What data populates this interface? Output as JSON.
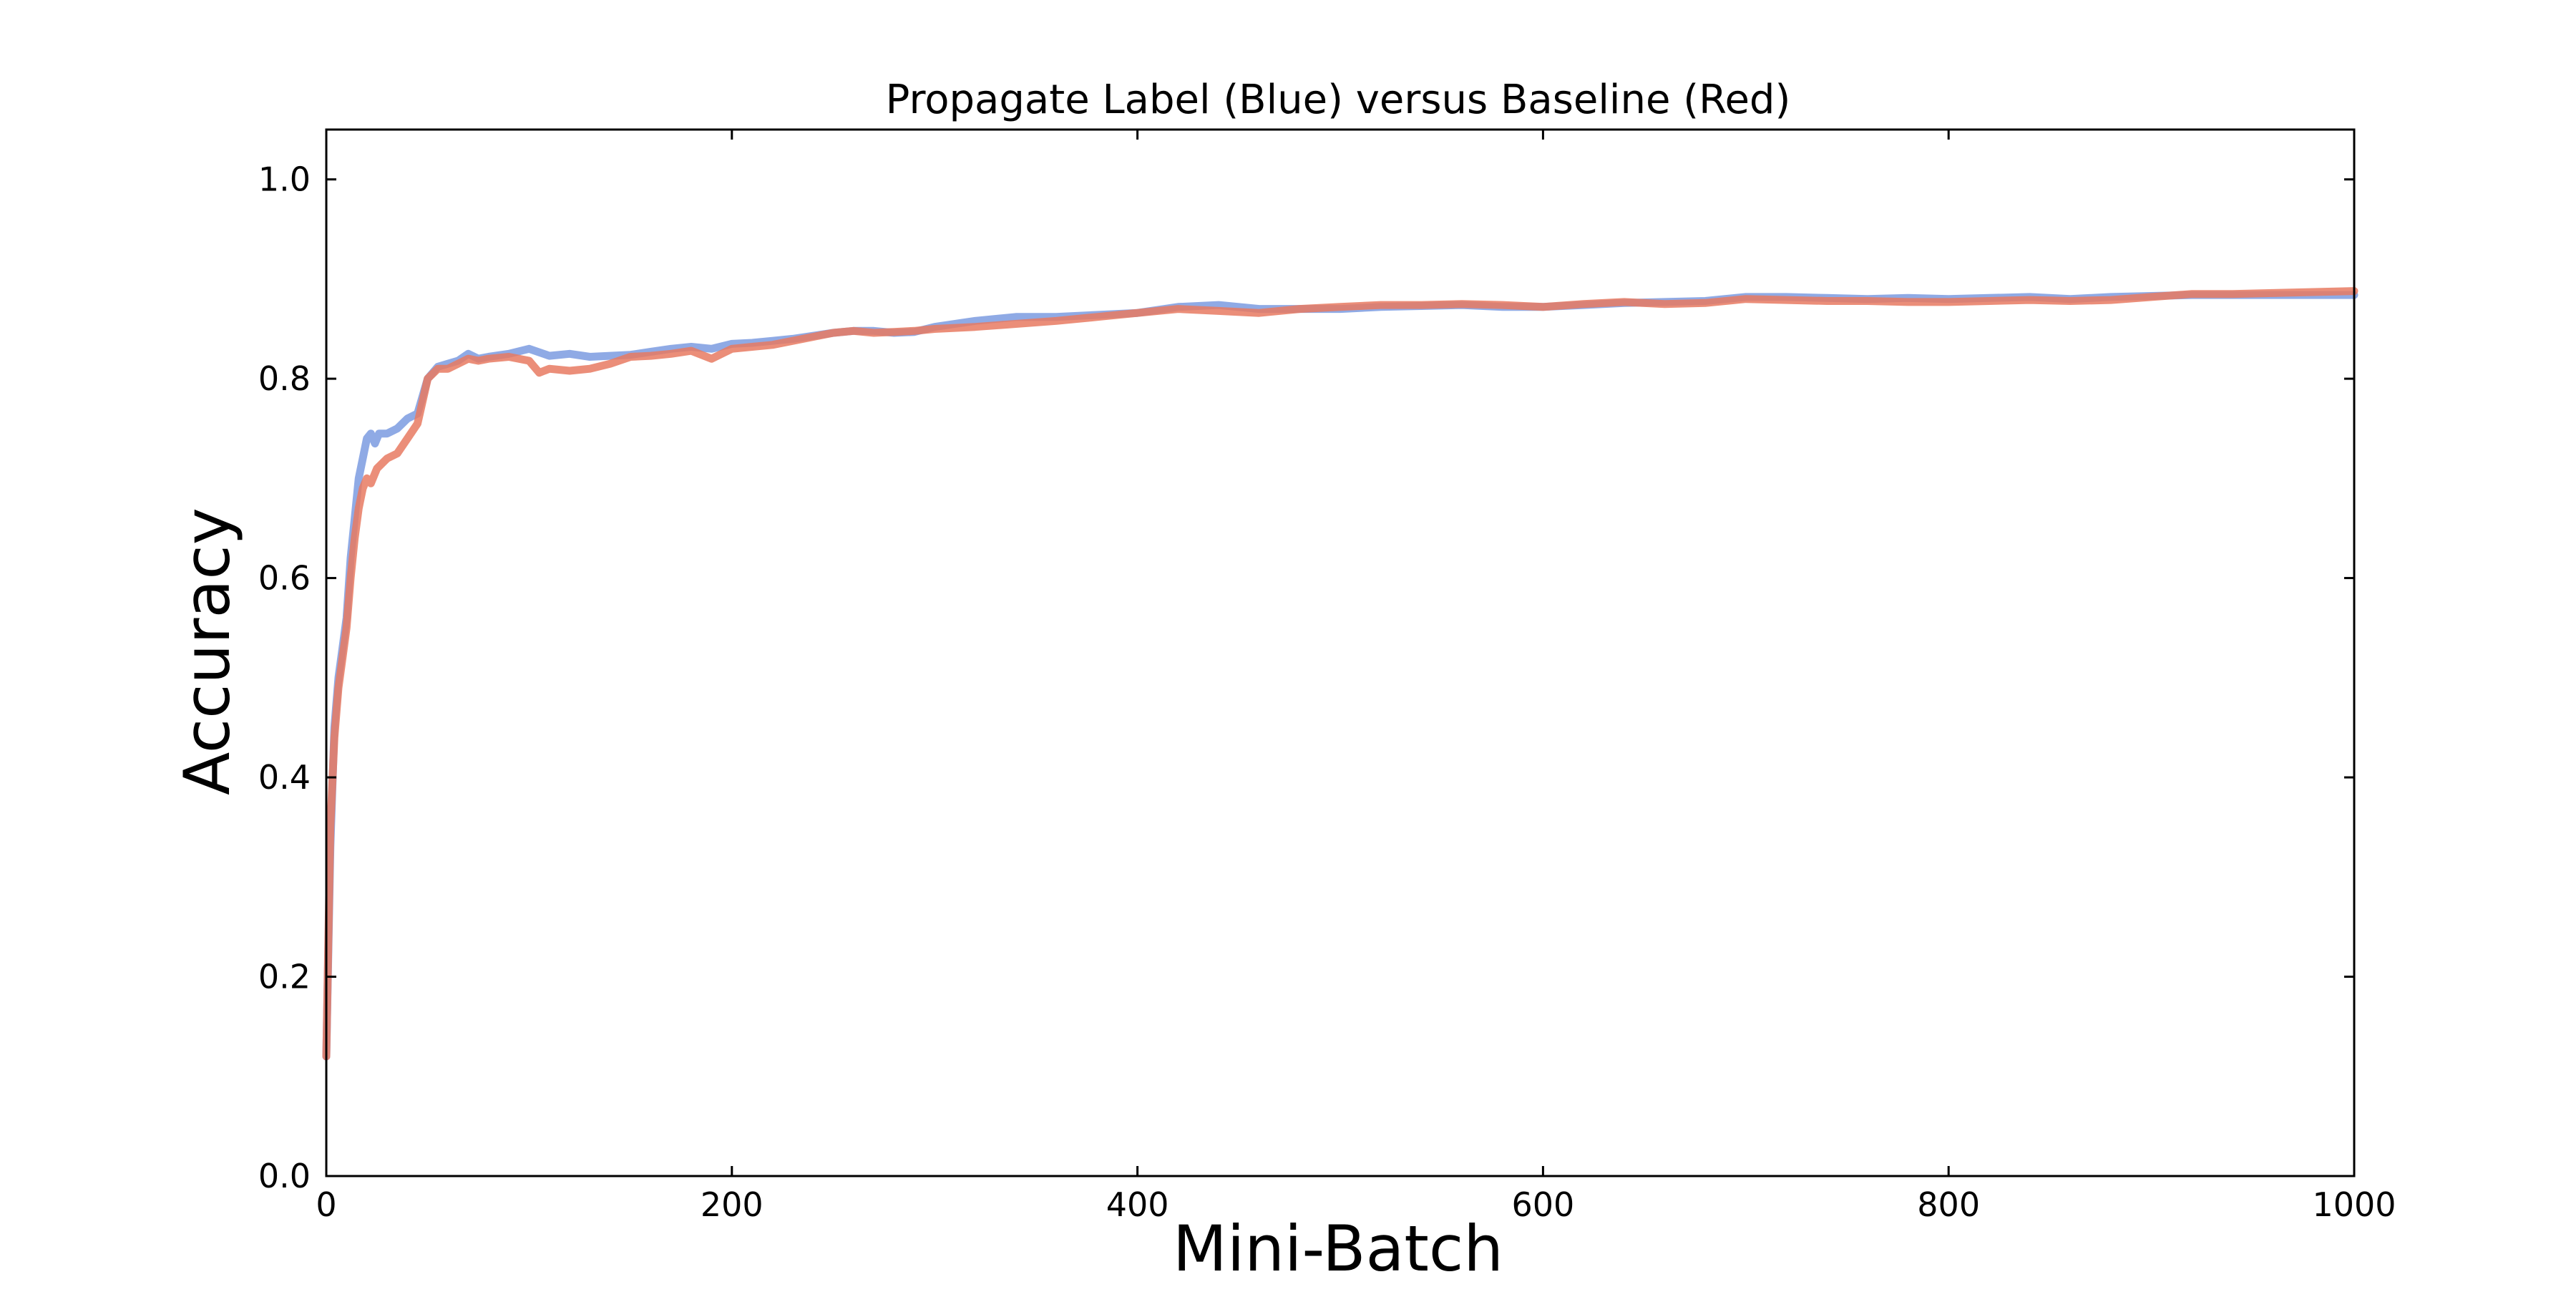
{
  "chart_data": {
    "type": "line",
    "title": "Propagate Label (Blue) versus Baseline (Red)",
    "xlabel": "Mini-Batch",
    "ylabel": "Accuracy",
    "xlim": [
      0,
      1000
    ],
    "ylim": [
      0.0,
      1.05
    ],
    "x_ticks": [
      "0",
      "200",
      "400",
      "600",
      "800",
      "1000"
    ],
    "y_ticks": [
      "0.0",
      "0.2",
      "0.4",
      "0.6",
      "0.8",
      "1.0"
    ],
    "grid": false,
    "legend": "none",
    "series": [
      {
        "color": "#7b9be0",
        "points": [
          [
            0,
            0.12
          ],
          [
            2,
            0.33
          ],
          [
            4,
            0.45
          ],
          [
            6,
            0.5
          ],
          [
            8,
            0.53
          ],
          [
            10,
            0.56
          ],
          [
            12,
            0.62
          ],
          [
            14,
            0.66
          ],
          [
            16,
            0.7
          ],
          [
            18,
            0.72
          ],
          [
            20,
            0.74
          ],
          [
            22,
            0.745
          ],
          [
            24,
            0.735
          ],
          [
            26,
            0.745
          ],
          [
            30,
            0.745
          ],
          [
            35,
            0.75
          ],
          [
            40,
            0.76
          ],
          [
            45,
            0.765
          ],
          [
            50,
            0.8
          ],
          [
            55,
            0.812
          ],
          [
            60,
            0.815
          ],
          [
            65,
            0.818
          ],
          [
            70,
            0.825
          ],
          [
            75,
            0.82
          ],
          [
            80,
            0.822
          ],
          [
            90,
            0.825
          ],
          [
            100,
            0.83
          ],
          [
            110,
            0.823
          ],
          [
            120,
            0.825
          ],
          [
            130,
            0.822
          ],
          [
            140,
            0.823
          ],
          [
            150,
            0.824
          ],
          [
            160,
            0.827
          ],
          [
            170,
            0.83
          ],
          [
            180,
            0.832
          ],
          [
            190,
            0.83
          ],
          [
            200,
            0.835
          ],
          [
            210,
            0.836
          ],
          [
            220,
            0.838
          ],
          [
            230,
            0.84
          ],
          [
            240,
            0.843
          ],
          [
            250,
            0.846
          ],
          [
            260,
            0.848
          ],
          [
            270,
            0.848
          ],
          [
            280,
            0.846
          ],
          [
            290,
            0.847
          ],
          [
            300,
            0.852
          ],
          [
            320,
            0.858
          ],
          [
            340,
            0.862
          ],
          [
            360,
            0.862
          ],
          [
            380,
            0.864
          ],
          [
            400,
            0.866
          ],
          [
            420,
            0.872
          ],
          [
            440,
            0.874
          ],
          [
            460,
            0.87
          ],
          [
            480,
            0.87
          ],
          [
            500,
            0.87
          ],
          [
            520,
            0.872
          ],
          [
            540,
            0.873
          ],
          [
            560,
            0.874
          ],
          [
            580,
            0.872
          ],
          [
            600,
            0.872
          ],
          [
            620,
            0.874
          ],
          [
            640,
            0.876
          ],
          [
            660,
            0.877
          ],
          [
            680,
            0.878
          ],
          [
            700,
            0.882
          ],
          [
            720,
            0.882
          ],
          [
            740,
            0.881
          ],
          [
            760,
            0.88
          ],
          [
            780,
            0.881
          ],
          [
            800,
            0.88
          ],
          [
            820,
            0.881
          ],
          [
            840,
            0.882
          ],
          [
            860,
            0.88
          ],
          [
            880,
            0.882
          ],
          [
            900,
            0.883
          ],
          [
            920,
            0.884
          ],
          [
            940,
            0.884
          ],
          [
            960,
            0.884
          ],
          [
            980,
            0.884
          ],
          [
            1000,
            0.884
          ]
        ]
      },
      {
        "color": "#e87a62",
        "points": [
          [
            0,
            0.12
          ],
          [
            2,
            0.35
          ],
          [
            4,
            0.44
          ],
          [
            6,
            0.49
          ],
          [
            8,
            0.52
          ],
          [
            10,
            0.55
          ],
          [
            12,
            0.6
          ],
          [
            14,
            0.64
          ],
          [
            16,
            0.67
          ],
          [
            18,
            0.69
          ],
          [
            20,
            0.7
          ],
          [
            22,
            0.695
          ],
          [
            25,
            0.71
          ],
          [
            30,
            0.72
          ],
          [
            35,
            0.725
          ],
          [
            40,
            0.74
          ],
          [
            45,
            0.755
          ],
          [
            50,
            0.8
          ],
          [
            55,
            0.81
          ],
          [
            60,
            0.81
          ],
          [
            65,
            0.815
          ],
          [
            70,
            0.82
          ],
          [
            75,
            0.818
          ],
          [
            80,
            0.82
          ],
          [
            90,
            0.822
          ],
          [
            100,
            0.818
          ],
          [
            105,
            0.806
          ],
          [
            110,
            0.81
          ],
          [
            120,
            0.808
          ],
          [
            130,
            0.81
          ],
          [
            140,
            0.815
          ],
          [
            150,
            0.822
          ],
          [
            160,
            0.823
          ],
          [
            170,
            0.825
          ],
          [
            180,
            0.828
          ],
          [
            190,
            0.82
          ],
          [
            200,
            0.83
          ],
          [
            210,
            0.832
          ],
          [
            220,
            0.834
          ],
          [
            230,
            0.838
          ],
          [
            240,
            0.842
          ],
          [
            250,
            0.846
          ],
          [
            260,
            0.848
          ],
          [
            270,
            0.846
          ],
          [
            280,
            0.847
          ],
          [
            290,
            0.848
          ],
          [
            300,
            0.85
          ],
          [
            320,
            0.852
          ],
          [
            340,
            0.855
          ],
          [
            360,
            0.858
          ],
          [
            380,
            0.862
          ],
          [
            400,
            0.866
          ],
          [
            420,
            0.87
          ],
          [
            440,
            0.868
          ],
          [
            460,
            0.866
          ],
          [
            480,
            0.87
          ],
          [
            500,
            0.872
          ],
          [
            520,
            0.874
          ],
          [
            540,
            0.874
          ],
          [
            560,
            0.875
          ],
          [
            580,
            0.874
          ],
          [
            600,
            0.872
          ],
          [
            620,
            0.875
          ],
          [
            640,
            0.877
          ],
          [
            660,
            0.875
          ],
          [
            680,
            0.876
          ],
          [
            700,
            0.88
          ],
          [
            720,
            0.879
          ],
          [
            740,
            0.878
          ],
          [
            760,
            0.878
          ],
          [
            780,
            0.877
          ],
          [
            800,
            0.877
          ],
          [
            820,
            0.878
          ],
          [
            840,
            0.879
          ],
          [
            860,
            0.878
          ],
          [
            880,
            0.879
          ],
          [
            900,
            0.882
          ],
          [
            920,
            0.885
          ],
          [
            940,
            0.885
          ],
          [
            960,
            0.886
          ],
          [
            980,
            0.887
          ],
          [
            1000,
            0.888
          ]
        ]
      }
    ]
  }
}
